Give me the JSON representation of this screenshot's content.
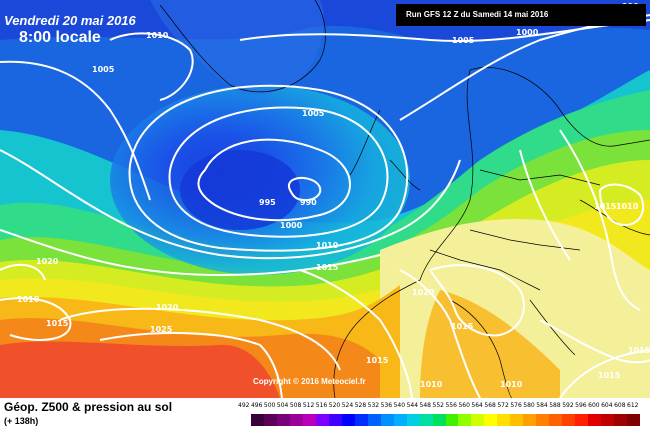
{
  "header": {
    "date": "Vendredi 20 mai 2016",
    "time": "8:00 locale",
    "run": "Run GFS 12 Z du Samedi 14 mai 2016"
  },
  "footer": {
    "title": "Géop. Z500 & pression au sol",
    "subtitle": "(+ 138h)",
    "copyright": "Copyright © 2016 Meteociel.fr"
  },
  "isobar_labels": [
    "990",
    "1005",
    "1000",
    "1010",
    "1005",
    "1005",
    "995",
    "990",
    "1000",
    "1010",
    "1015",
    "1015",
    "1010",
    "1020",
    "1020",
    "1010",
    "1015",
    "1020",
    "1025",
    "1015",
    "1015",
    "1010",
    "1010",
    "1015",
    "1015"
  ],
  "scale": {
    "labels": [
      "492",
      "496",
      "500",
      "504",
      "508",
      "512",
      "516",
      "520",
      "524",
      "528",
      "532",
      "536",
      "540",
      "544",
      "548",
      "552",
      "556",
      "560",
      "564",
      "568",
      "572",
      "576",
      "580",
      "584",
      "588",
      "592",
      "596",
      "600",
      "604",
      "608",
      "612"
    ],
    "colors": [
      "#ffffff",
      "#3a003a",
      "#5a005a",
      "#7a007a",
      "#9a009a",
      "#ba00ba",
      "#8000ff",
      "#4000ff",
      "#0000ff",
      "#0030ff",
      "#0060ff",
      "#0090ff",
      "#00b0ff",
      "#00d0e0",
      "#00e0a0",
      "#00e060",
      "#40f000",
      "#90ff00",
      "#d0ff00",
      "#ffff00",
      "#ffe000",
      "#ffc000",
      "#ffa000",
      "#ff8000",
      "#ff6000",
      "#ff4000",
      "#ff2000",
      "#e00000",
      "#c00000",
      "#a00000",
      "#800000"
    ]
  }
}
